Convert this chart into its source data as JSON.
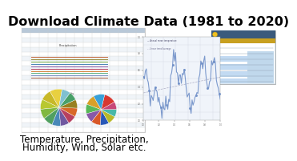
{
  "title": "Download Climate Data (1981 to 2020)",
  "subtitle_line1": "Temperature, Precipitation,",
  "subtitle_line2": "Humidity, Wind, Solar etc.",
  "bg_color": "#ffffff",
  "title_color": "#000000",
  "title_fontsize": 11.5,
  "subtitle_fontsize": 8.5,
  "line_color": "#7090c8",
  "grid_line_color": "#c8ccd8",
  "pie1_colors": [
    "#e8d040",
    "#c8b828",
    "#b8c830",
    "#80b840",
    "#50a060",
    "#4888b8",
    "#7058a0",
    "#b84060",
    "#d86828",
    "#988020",
    "#48a068",
    "#80c0d0"
  ],
  "pie2_colors": [
    "#d83830",
    "#38a0d8",
    "#d8a028",
    "#58b858",
    "#8858a8",
    "#d85828",
    "#2858b8",
    "#b8b828",
    "#48b8a8",
    "#c84878"
  ],
  "excel_header_color": "#b8c8d8",
  "row_alt1": "#ffffff",
  "row_alt2": "#f0f4f8"
}
